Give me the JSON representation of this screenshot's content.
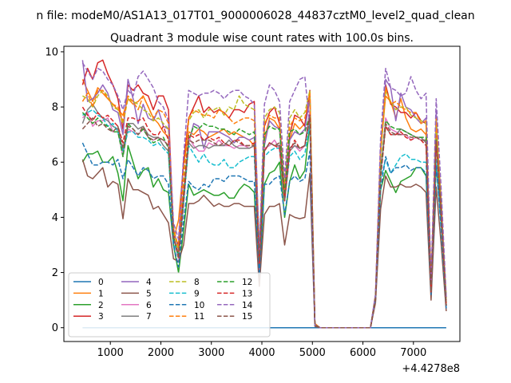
{
  "chart_data": {
    "type": "line",
    "suptitle": "n file: modeM0/AS1A13_017T01_9000006028_44837cztM0_level2_quad_clean",
    "title": "Quadrant 3 module wise count rates with 100.0s bins.",
    "xlabel": "",
    "ylabel": "",
    "x_offset_label": "+4.4278e8",
    "xlim": [
      80,
      7920
    ],
    "ylim": [
      -0.5,
      10.2
    ],
    "x_ticks": [
      1000,
      2000,
      3000,
      4000,
      5000,
      6000,
      7000
    ],
    "x_tick_labels": [
      "1000",
      "2000",
      "3000",
      "4000",
      "5000",
      "6000",
      "7000"
    ],
    "y_ticks": [
      0,
      2,
      4,
      6,
      8,
      10
    ],
    "y_tick_labels": [
      "0",
      "2",
      "4",
      "6",
      "8",
      "10"
    ],
    "legend_position": "lower-left",
    "legend_columns": 4,
    "grid": false,
    "x": [
      450,
      550,
      650,
      750,
      850,
      950,
      1050,
      1150,
      1250,
      1350,
      1450,
      1550,
      1650,
      1750,
      1850,
      1950,
      2050,
      2150,
      2250,
      2350,
      2450,
      2550,
      2650,
      2750,
      2850,
      2950,
      3050,
      3150,
      3250,
      3350,
      3450,
      3550,
      3650,
      3750,
      3850,
      3950,
      4050,
      4150,
      4250,
      4350,
      4450,
      4550,
      4650,
      4750,
      4850,
      4950,
      5050,
      5150,
      5250,
      6150,
      6250,
      6350,
      6450,
      6550,
      6650,
      6750,
      6850,
      6950,
      7050,
      7150,
      7250,
      7350,
      7450,
      7550,
      7650
    ],
    "series": [
      {
        "name": "0",
        "color": "#1f77b4",
        "style": "solid",
        "values": [
          0,
          0,
          0,
          0,
          0,
          0,
          0,
          0,
          0,
          0,
          0,
          0,
          0,
          0,
          0,
          0,
          0,
          0,
          0,
          0,
          0,
          0,
          0,
          0,
          0,
          0,
          0,
          0,
          0,
          0,
          0,
          0,
          0,
          0,
          0,
          0,
          0,
          0,
          0,
          0,
          0,
          0,
          0,
          0,
          0,
          0,
          0,
          0,
          0,
          0,
          0,
          0,
          0,
          0,
          0,
          0,
          0,
          0,
          0,
          0,
          0,
          0,
          0,
          0,
          0
        ]
      },
      {
        "name": "1",
        "color": "#ff7f0e",
        "style": "solid",
        "values": [
          9.0,
          8.6,
          8.2,
          8.7,
          8.5,
          8.3,
          8.1,
          7.9,
          7.7,
          8.3,
          8.1,
          8.2,
          8.4,
          8.0,
          7.6,
          7.4,
          7.1,
          6.9,
          3.2,
          3.9,
          5.9,
          7.1,
          7.0,
          7.2,
          7.1,
          6.9,
          7.0,
          7.1,
          7.2,
          7.0,
          7.1,
          7.0,
          6.9,
          6.8,
          6.6,
          2.9,
          6.8,
          7.6,
          7.5,
          7.2,
          4.9,
          6.8,
          7.4,
          7.2,
          7.4,
          8.5,
          0.15,
          0,
          0,
          0,
          1.0,
          6.4,
          8.4,
          8.2,
          7.6,
          8.3,
          7.6,
          7.2,
          7.1,
          7.2,
          7.0,
          1.6,
          7.3,
          4.2,
          1.1
        ]
      },
      {
        "name": "2",
        "color": "#2ca02c",
        "style": "solid",
        "values": [
          6.0,
          6.3,
          6.3,
          6.4,
          6.0,
          6.0,
          6.2,
          5.6,
          4.6,
          6.6,
          6.0,
          5.4,
          5.7,
          5.8,
          5.1,
          5.4,
          5.0,
          4.9,
          3.0,
          2.0,
          3.5,
          5.2,
          4.8,
          4.9,
          5.0,
          4.9,
          4.8,
          4.8,
          4.9,
          4.7,
          4.7,
          5.0,
          5.2,
          5.1,
          4.9,
          1.6,
          5.2,
          5.6,
          5.7,
          6.0,
          4.0,
          5.3,
          5.9,
          5.4,
          5.7,
          7.4,
          0.1,
          0,
          0,
          0,
          1.1,
          5.0,
          5.7,
          5.3,
          4.9,
          5.3,
          5.4,
          5.5,
          5.8,
          5.8,
          5.5,
          1.2,
          5.9,
          3.8,
          1.1
        ]
      },
      {
        "name": "3",
        "color": "#d62728",
        "style": "solid",
        "values": [
          8.8,
          9.4,
          9.0,
          9.6,
          9.7,
          9.2,
          8.8,
          8.3,
          7.2,
          8.8,
          8.6,
          8.8,
          8.5,
          8.4,
          7.9,
          8.4,
          8.4,
          7.9,
          3.4,
          3.0,
          6.0,
          7.6,
          8.0,
          8.4,
          7.8,
          8.0,
          7.8,
          7.9,
          7.8,
          7.6,
          7.9,
          7.9,
          7.8,
          8.1,
          8.2,
          2.6,
          7.3,
          7.8,
          8.0,
          7.4,
          5.0,
          7.0,
          7.7,
          7.6,
          7.3,
          8.6,
          0.1,
          0,
          0,
          0,
          1.2,
          6.5,
          8.8,
          8.1,
          8.0,
          7.8,
          7.8,
          7.6,
          7.8,
          7.5,
          7.4,
          1.5,
          7.4,
          4.6,
          0.8
        ]
      },
      {
        "name": "4",
        "color": "#9467bd",
        "style": "solid",
        "values": [
          9.7,
          8.2,
          8.3,
          8.5,
          8.8,
          8.5,
          7.9,
          7.8,
          7.0,
          9.0,
          8.3,
          7.4,
          8.1,
          7.6,
          7.5,
          7.9,
          7.3,
          7.2,
          3.6,
          2.8,
          4.9,
          6.7,
          7.4,
          7.3,
          6.5,
          7.1,
          7.1,
          7.1,
          7.0,
          6.9,
          6.7,
          6.9,
          6.9,
          6.8,
          6.9,
          2.0,
          6.6,
          7.5,
          7.3,
          7.2,
          4.9,
          6.8,
          7.1,
          7.0,
          7.2,
          8.3,
          0.1,
          0,
          0,
          0,
          1.1,
          6.3,
          9.0,
          8.7,
          7.5,
          8.5,
          8.0,
          7.9,
          7.6,
          7.4,
          7.6,
          1.5,
          7.8,
          4.0,
          1.0
        ]
      },
      {
        "name": "5",
        "color": "#8c564b",
        "style": "solid",
        "values": [
          6.1,
          5.5,
          5.4,
          5.6,
          5.8,
          5.1,
          5.3,
          5.2,
          3.95,
          5.4,
          5.0,
          5.0,
          4.9,
          4.8,
          4.3,
          4.4,
          4.1,
          3.8,
          2.5,
          2.4,
          3.0,
          4.5,
          4.5,
          4.6,
          4.8,
          4.6,
          4.4,
          4.5,
          4.4,
          4.4,
          4.5,
          4.5,
          4.4,
          4.4,
          4.4,
          1.5,
          4.1,
          4.4,
          4.4,
          4.5,
          3.0,
          4.1,
          4.0,
          3.95,
          4.0,
          5.6,
          0.05,
          0,
          0,
          0,
          0.9,
          4.3,
          5.5,
          5.1,
          5.1,
          5.2,
          5.1,
          5.1,
          5.2,
          5.1,
          4.9,
          1.0,
          5.1,
          3.0,
          0.6
        ]
      },
      {
        "name": "6",
        "color": "#e377c2",
        "style": "solid",
        "values": [
          7.6,
          7.8,
          7.3,
          7.5,
          7.5,
          7.6,
          7.1,
          7.1,
          6.2,
          7.2,
          7.1,
          7.0,
          7.2,
          6.9,
          6.8,
          6.9,
          6.8,
          6.6,
          3.3,
          2.5,
          4.5,
          6.9,
          6.6,
          6.4,
          6.4,
          6.7,
          6.6,
          6.8,
          6.6,
          6.6,
          6.5,
          6.6,
          6.6,
          6.5,
          6.6,
          2.4,
          6.5,
          6.6,
          6.8,
          6.5,
          4.7,
          6.5,
          6.6,
          6.4,
          6.6,
          7.9,
          0.1,
          0,
          0,
          0,
          1.0,
          5.6,
          7.6,
          7.2,
          7.1,
          7.0,
          7.0,
          6.8,
          6.9,
          6.8,
          6.8,
          1.3,
          6.8,
          4.0,
          0.8
        ]
      },
      {
        "name": "7",
        "color": "#7f7f7f",
        "style": "solid",
        "values": [
          7.4,
          7.9,
          8.1,
          7.8,
          7.6,
          7.5,
          7.3,
          7.2,
          6.4,
          7.4,
          7.4,
          7.2,
          7.3,
          7.0,
          6.9,
          6.9,
          6.6,
          6.4,
          3.3,
          2.6,
          4.6,
          6.7,
          6.5,
          6.6,
          6.6,
          6.5,
          6.6,
          6.6,
          6.6,
          6.8,
          6.6,
          6.5,
          6.5,
          6.5,
          6.6,
          2.4,
          6.4,
          6.7,
          6.6,
          6.6,
          4.6,
          6.4,
          6.6,
          6.5,
          6.6,
          7.7,
          0.1,
          0,
          0,
          0,
          1.0,
          5.6,
          7.3,
          7.0,
          7.0,
          7.2,
          7.1,
          7.0,
          6.9,
          6.9,
          6.7,
          1.4,
          6.9,
          4.1,
          0.8
        ]
      },
      {
        "name": "8",
        "color": "#bcbd22",
        "style": "dashed",
        "values": [
          8.4,
          8.3,
          8.0,
          8.4,
          8.6,
          8.4,
          8.0,
          7.9,
          7.4,
          8.3,
          8.2,
          8.1,
          7.9,
          7.8,
          7.5,
          7.6,
          7.4,
          7.2,
          3.5,
          2.8,
          5.2,
          7.5,
          7.8,
          7.9,
          7.6,
          7.9,
          7.9,
          8.0,
          7.7,
          8.0,
          7.9,
          8.4,
          8.1,
          8.0,
          7.9,
          2.6,
          7.6,
          7.9,
          8.0,
          7.8,
          5.0,
          7.6,
          7.9,
          7.6,
          7.8,
          8.6,
          0.1,
          0,
          0,
          0,
          1.1,
          6.2,
          8.6,
          8.2,
          7.9,
          8.0,
          8.0,
          7.7,
          7.6,
          7.5,
          7.4,
          1.5,
          7.5,
          4.4,
          0.9
        ]
      },
      {
        "name": "9",
        "color": "#17becf",
        "style": "dashed",
        "values": [
          7.7,
          7.8,
          7.9,
          7.7,
          7.6,
          7.3,
          7.4,
          7.1,
          6.4,
          7.1,
          7.1,
          6.9,
          6.9,
          6.8,
          6.6,
          6.7,
          6.5,
          6.3,
          3.1,
          2.6,
          4.5,
          6.6,
          6.3,
          6.0,
          6.3,
          6.0,
          5.9,
          5.9,
          6.1,
          5.8,
          5.8,
          6.0,
          6.1,
          6.2,
          6.2,
          2.2,
          6.2,
          6.4,
          6.5,
          6.5,
          4.6,
          6.2,
          6.4,
          6.1,
          6.3,
          7.4,
          0.1,
          0,
          0,
          0,
          1.1,
          5.4,
          6.1,
          5.6,
          5.9,
          6.2,
          6.3,
          6.1,
          6.1,
          6.0,
          6.0,
          1.3,
          6.1,
          3.5,
          0.8
        ]
      },
      {
        "name": "10",
        "color": "#1f77b4",
        "style": "dashed",
        "values": [
          6.7,
          6.3,
          5.9,
          5.9,
          6.0,
          6.0,
          5.9,
          6.1,
          5.4,
          6.1,
          5.8,
          5.5,
          5.8,
          5.7,
          5.4,
          5.5,
          5.5,
          5.2,
          3.0,
          2.2,
          3.9,
          5.3,
          5.1,
          5.0,
          5.2,
          5.1,
          5.4,
          5.4,
          5.3,
          5.5,
          5.5,
          5.5,
          5.4,
          5.3,
          5.3,
          1.9,
          5.2,
          5.2,
          5.4,
          5.5,
          4.1,
          5.3,
          5.5,
          5.3,
          5.4,
          6.4,
          0.1,
          0,
          0,
          0,
          1.0,
          5.0,
          6.2,
          5.6,
          5.8,
          5.8,
          5.9,
          5.7,
          5.8,
          5.8,
          5.6,
          1.2,
          5.9,
          3.6,
          0.7
        ]
      },
      {
        "name": "11",
        "color": "#ff7f0e",
        "style": "dashed",
        "values": [
          8.2,
          8.5,
          8.0,
          8.6,
          8.6,
          8.3,
          8.1,
          8.0,
          7.5,
          8.4,
          8.2,
          7.9,
          8.4,
          8.0,
          7.6,
          7.9,
          7.8,
          7.4,
          3.6,
          2.9,
          5.6,
          7.6,
          7.9,
          7.8,
          7.7,
          7.7,
          7.6,
          7.9,
          7.8,
          7.6,
          7.4,
          7.5,
          7.6,
          7.6,
          7.5,
          2.5,
          7.4,
          7.7,
          7.6,
          7.6,
          5.0,
          7.3,
          7.6,
          7.5,
          7.6,
          8.5,
          0.1,
          0,
          0,
          0,
          1.1,
          6.4,
          8.7,
          8.1,
          8.2,
          8.0,
          7.9,
          7.8,
          7.8,
          7.4,
          7.5,
          1.5,
          7.6,
          4.5,
          0.9
        ]
      },
      {
        "name": "12",
        "color": "#2ca02c",
        "style": "dashed",
        "values": [
          7.8,
          7.6,
          7.4,
          7.6,
          7.4,
          7.3,
          7.1,
          7.1,
          6.2,
          7.4,
          7.2,
          7.0,
          7.2,
          6.9,
          6.7,
          6.8,
          6.9,
          6.5,
          3.3,
          2.6,
          4.7,
          6.8,
          7.3,
          7.2,
          7.4,
          7.3,
          7.3,
          7.2,
          7.2,
          7.1,
          7.0,
          7.2,
          7.1,
          7.0,
          7.1,
          2.4,
          7.0,
          7.3,
          7.2,
          7.2,
          4.8,
          7.1,
          7.2,
          7.0,
          7.1,
          7.7,
          0.1,
          0,
          0,
          0,
          1.1,
          5.7,
          7.5,
          7.3,
          7.2,
          7.2,
          7.1,
          7.0,
          6.9,
          6.9,
          6.9,
          1.3,
          6.8,
          4.2,
          0.8
        ]
      },
      {
        "name": "13",
        "color": "#d62728",
        "style": "dashed",
        "values": [
          8.0,
          7.7,
          7.5,
          7.8,
          7.6,
          7.7,
          7.5,
          7.3,
          6.7,
          7.6,
          7.6,
          7.5,
          7.6,
          7.2,
          7.0,
          7.0,
          7.3,
          6.8,
          3.3,
          2.6,
          4.8,
          7.0,
          6.9,
          7.0,
          6.8,
          6.9,
          6.8,
          6.9,
          6.7,
          6.6,
          6.8,
          6.8,
          6.6,
          6.6,
          6.7,
          2.3,
          6.4,
          6.7,
          6.6,
          6.5,
          4.6,
          6.4,
          6.8,
          6.5,
          6.6,
          7.7,
          0.1,
          0,
          0,
          0,
          1.0,
          5.4,
          7.3,
          7.0,
          7.0,
          7.1,
          6.9,
          6.8,
          6.9,
          6.8,
          6.6,
          1.3,
          6.7,
          4.1,
          0.8
        ]
      },
      {
        "name": "14",
        "color": "#9467bd",
        "style": "dashed",
        "values": [
          9.6,
          9.3,
          9.0,
          9.4,
          9.3,
          9.0,
          8.8,
          8.4,
          7.9,
          8.6,
          8.4,
          9.1,
          9.3,
          9.0,
          8.7,
          8.2,
          8.0,
          7.5,
          3.8,
          3.2,
          6.2,
          8.6,
          8.5,
          8.4,
          8.5,
          8.5,
          8.6,
          8.5,
          8.3,
          8.5,
          8.6,
          8.6,
          8.4,
          8.3,
          8.1,
          2.8,
          8.1,
          8.8,
          8.6,
          8.2,
          5.4,
          8.2,
          8.6,
          9.0,
          9.1,
          7.3,
          0.1,
          0,
          0,
          0,
          1.2,
          6.9,
          9.4,
          8.7,
          8.6,
          8.4,
          8.5,
          9.1,
          8.6,
          8.3,
          8.5,
          1.7,
          8.3,
          5.0,
          1.1
        ]
      },
      {
        "name": "15",
        "color": "#8c564b",
        "style": "dashed",
        "values": [
          7.2,
          7.4,
          7.6,
          7.3,
          7.4,
          7.2,
          7.1,
          7.3,
          6.5,
          7.3,
          7.2,
          7.0,
          7.3,
          6.9,
          6.8,
          6.9,
          6.8,
          6.6,
          3.3,
          2.5,
          4.5,
          6.8,
          6.7,
          6.8,
          6.8,
          6.8,
          6.7,
          6.6,
          6.7,
          6.6,
          6.8,
          6.7,
          6.6,
          6.6,
          6.6,
          2.4,
          6.4,
          6.7,
          6.6,
          6.7,
          4.6,
          6.5,
          6.7,
          6.5,
          6.6,
          7.6,
          0.1,
          0,
          0,
          0,
          1.0,
          5.5,
          7.4,
          7.1,
          7.0,
          7.0,
          7.0,
          6.9,
          6.9,
          6.8,
          6.8,
          1.3,
          6.8,
          4.1,
          0.8
        ]
      }
    ]
  }
}
